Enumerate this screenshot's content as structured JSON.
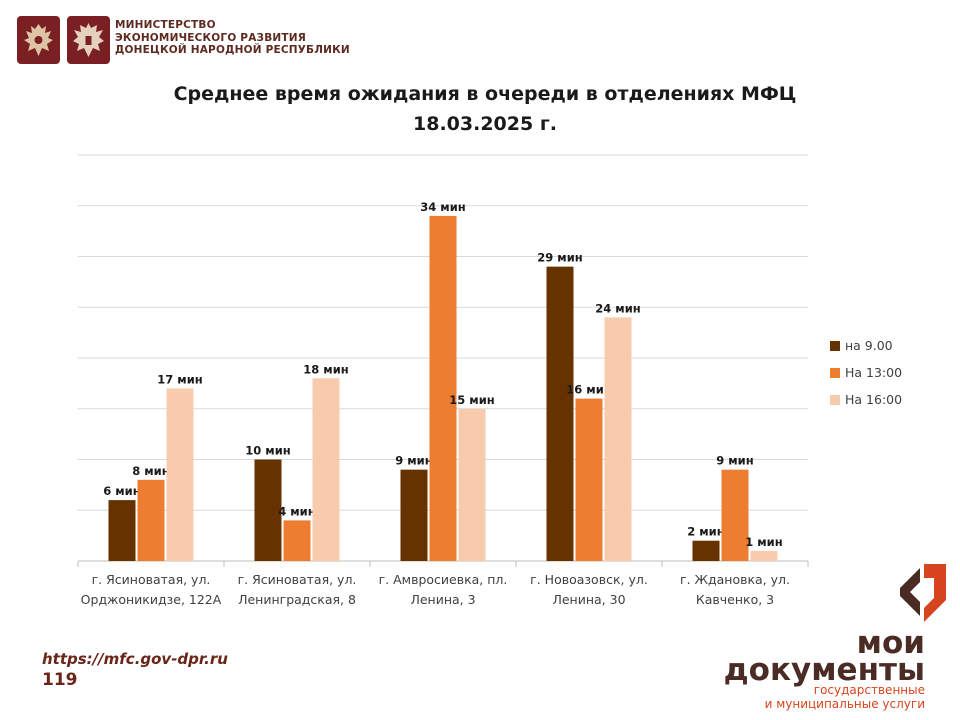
{
  "header": {
    "ministry_lines": [
      "МИНИСТЕРСТВО",
      "ЭКОНОМИЧЕСКОГО РАЗВИТИЯ",
      "ДОНЕЦКОЙ НАРОДНОЙ РЕСПУБЛИКИ"
    ]
  },
  "chart_data": {
    "type": "bar",
    "title": "Среднее время ожидания в очереди в отделениях МФЦ",
    "subtitle": "18.03.2025   г.",
    "categories": [
      [
        "г. Ясиноватая, ул.",
        "Орджоникидзе, 122А"
      ],
      [
        "г. Ясиноватая, ул.",
        "Ленинградская, 8"
      ],
      [
        "г. Амвросиевка, пл.",
        "Ленина, 3"
      ],
      [
        "г. Новоазовск, ул.",
        "Ленина, 30"
      ],
      [
        "г. Ждановка, ул.",
        "Кавченко, 3"
      ]
    ],
    "series": [
      {
        "name": "на 9.00",
        "color": "#663300",
        "values": [
          6,
          10,
          9,
          29,
          2
        ]
      },
      {
        "name": "На 13:00",
        "color": "#ed7d31",
        "values": [
          8,
          4,
          34,
          16,
          9
        ]
      },
      {
        "name": "На 16:00",
        "color": "#f8cbad",
        "values": [
          17,
          18,
          15,
          24,
          1
        ]
      }
    ],
    "value_suffix": " мин",
    "ylim": [
      0,
      40
    ],
    "ytick_step": 5,
    "grid": true,
    "legend_position": "right"
  },
  "footer": {
    "url": "https://mfc.gov-dpr.ru",
    "page_number": "119"
  },
  "brand": {
    "name_lines": [
      "мои",
      "документы"
    ],
    "tagline_lines": [
      "государственные",
      "и муниципальные услуги"
    ],
    "colors": {
      "accent": "#d6451f",
      "dark": "#4a2c24"
    }
  }
}
